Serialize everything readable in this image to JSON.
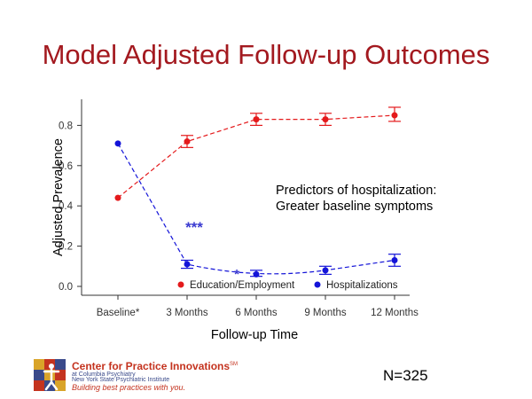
{
  "title": "Model Adjusted Follow-up Outcomes",
  "annotation": {
    "line1": "Predictors of hospitalization:",
    "line2": "Greater baseline symptoms"
  },
  "significance": {
    "three_months": "***",
    "six_months": "*"
  },
  "sample_size": "N=325",
  "footer": {
    "org_name": "Center for Practice Innovations",
    "org_mark": "SM",
    "affiliation1": "at Columbia Psychiatry",
    "affiliation2": "New York State Psychiatric Institute",
    "tagline": "Building best practices with you."
  },
  "colors": {
    "title": "#a3191f",
    "education": "#e41a1c",
    "hospitalizations": "#1414d8",
    "significance": "#3a3ad0"
  },
  "chart_data": {
    "type": "line",
    "xlabel": "Follow-up Time",
    "ylabel": "Adjusted Prevalence",
    "categories": [
      "Baseline*",
      "3 Months",
      "6 Months",
      "9 Months",
      "12 Months"
    ],
    "yticks": [
      "0.0",
      "0.2",
      "0.4",
      "0.6",
      "0.8"
    ],
    "ylim": [
      -0.03,
      0.92
    ],
    "legend_position": "bottom-right inside plot",
    "series": [
      {
        "name": "Education/Employment",
        "color": "#e41a1c",
        "values": [
          0.44,
          0.72,
          0.83,
          0.83,
          0.85
        ],
        "error_low": [
          null,
          0.69,
          0.8,
          0.8,
          0.82
        ],
        "error_high": [
          null,
          0.75,
          0.86,
          0.86,
          0.89
        ]
      },
      {
        "name": "Hospitalizations",
        "color": "#1414d8",
        "values": [
          0.71,
          0.11,
          0.06,
          0.08,
          0.13
        ],
        "error_low": [
          null,
          0.09,
          0.05,
          0.06,
          0.1
        ],
        "error_high": [
          null,
          0.13,
          0.08,
          0.1,
          0.16
        ]
      }
    ]
  }
}
